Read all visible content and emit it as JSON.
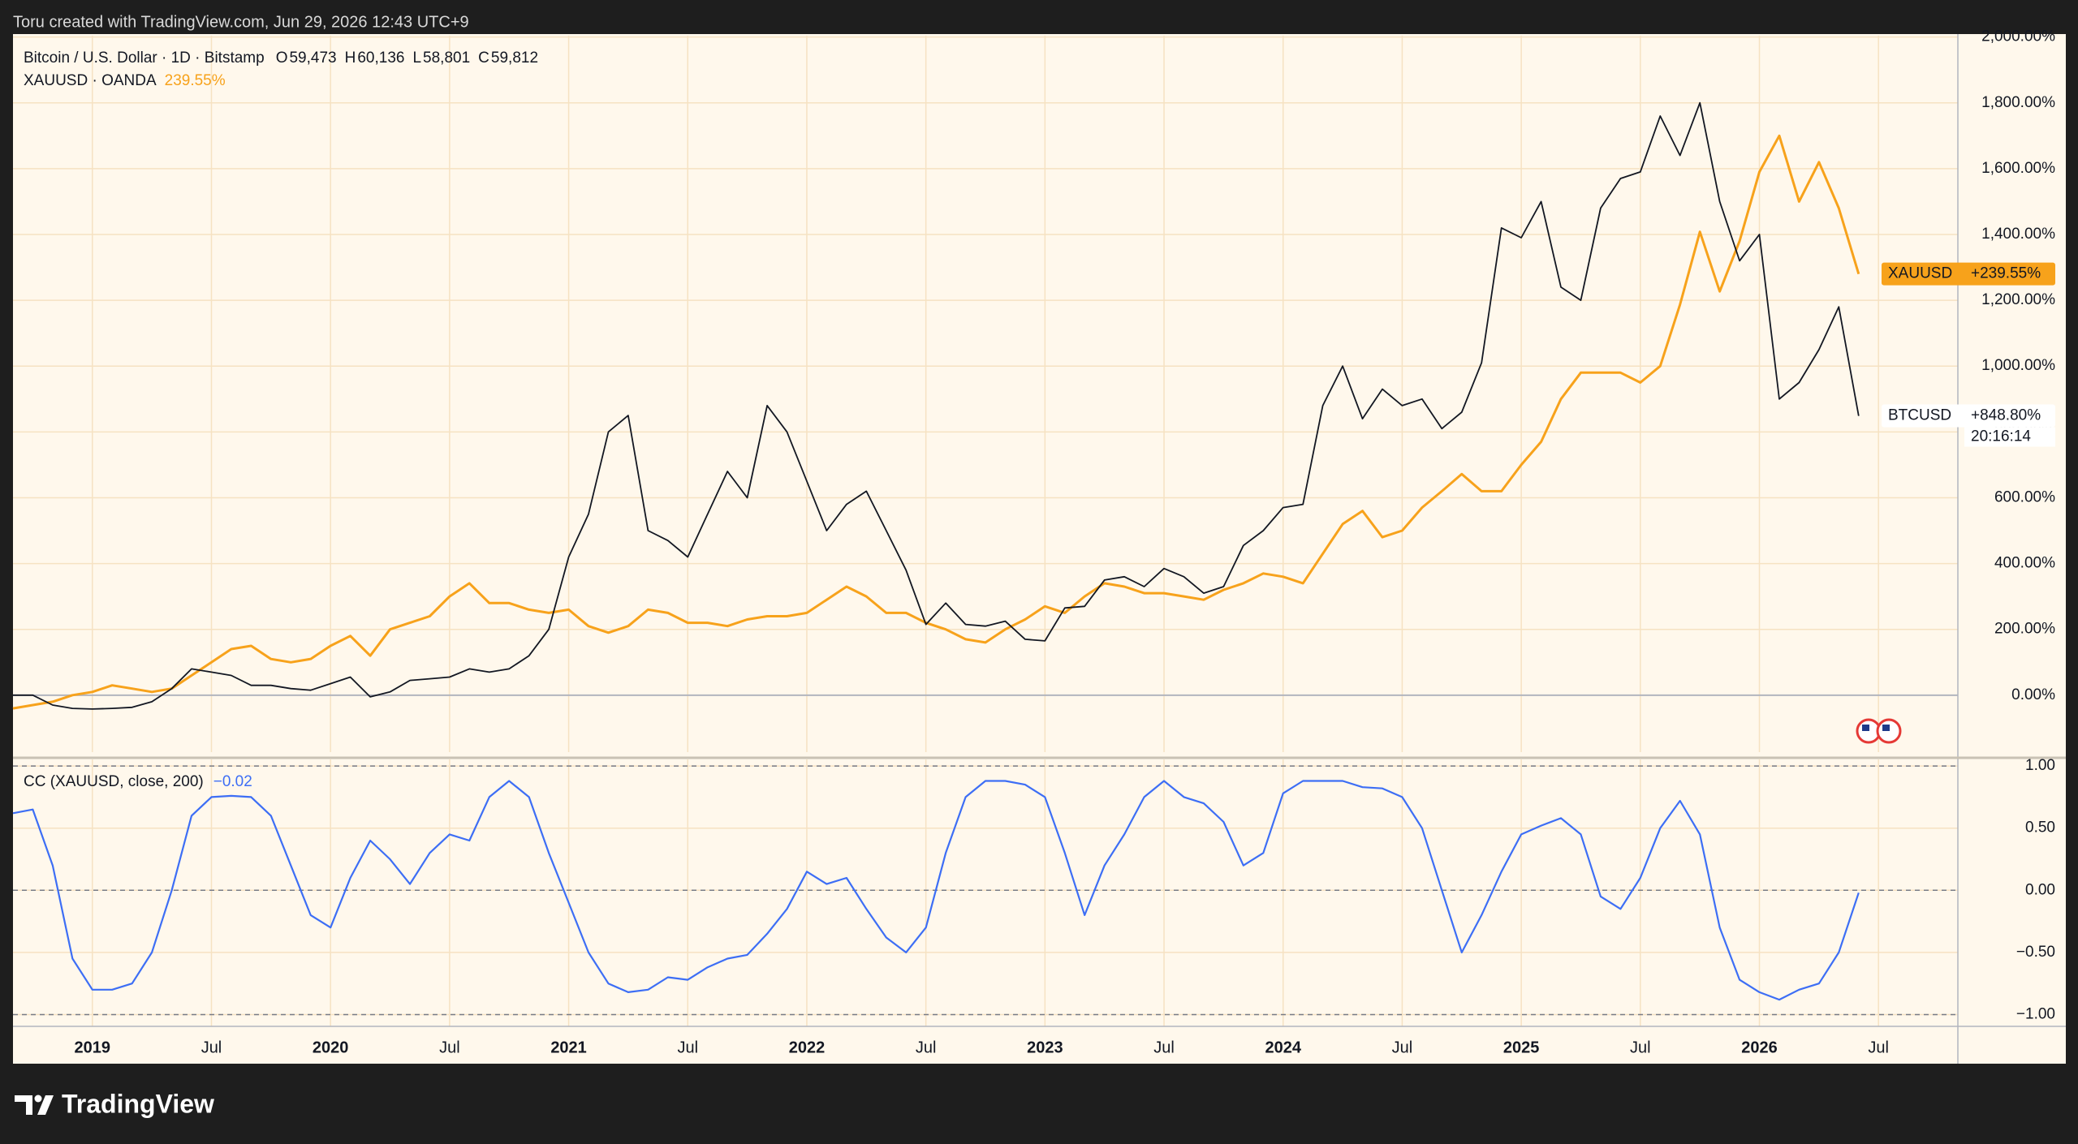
{
  "header": {
    "attribution": "Toru created with TradingView.com, Jun 29, 2026 12:43 UTC+9"
  },
  "footer": {
    "brand": "TradingView"
  },
  "chart_data": [
    {
      "type": "line",
      "title": "Bitcoin / U.S. Dollar · 1D · Bitstamp",
      "ohlc": [
        {
          "key": "O",
          "value": "59,473"
        },
        {
          "key": "H",
          "value": "60,136"
        },
        {
          "key": "L",
          "value": "58,801"
        },
        {
          "key": "C",
          "value": "59,812"
        }
      ],
      "x": [
        "2018-09",
        "2018-10",
        "2018-11",
        "2018-12",
        "2019-01",
        "2019-02",
        "2019-03",
        "2019-04",
        "2019-05",
        "2019-06",
        "2019-07",
        "2019-08",
        "2019-09",
        "2019-10",
        "2019-11",
        "2019-12",
        "2020-01",
        "2020-02",
        "2020-03",
        "2020-04",
        "2020-05",
        "2020-06",
        "2020-07",
        "2020-08",
        "2020-09",
        "2020-10",
        "2020-11",
        "2020-12",
        "2021-01",
        "2021-02",
        "2021-03",
        "2021-04",
        "2021-05",
        "2021-06",
        "2021-07",
        "2021-08",
        "2021-09",
        "2021-10",
        "2021-11",
        "2021-12",
        "2022-01",
        "2022-02",
        "2022-03",
        "2022-04",
        "2022-05",
        "2022-06",
        "2022-07",
        "2022-08",
        "2022-09",
        "2022-10",
        "2022-11",
        "2022-12",
        "2023-01",
        "2023-02",
        "2023-03",
        "2023-04",
        "2023-05",
        "2023-06",
        "2023-07",
        "2023-08",
        "2023-09",
        "2023-10",
        "2023-11",
        "2023-12",
        "2024-01",
        "2024-02",
        "2024-03",
        "2024-04",
        "2024-05",
        "2024-06",
        "2024-07",
        "2024-08",
        "2024-09",
        "2024-10",
        "2024-11",
        "2024-12",
        "2025-01",
        "2025-02",
        "2025-03",
        "2025-04",
        "2025-05",
        "2025-06",
        "2025-07",
        "2025-08",
        "2025-09",
        "2025-10",
        "2025-11",
        "2025-12",
        "2026-01",
        "2026-02",
        "2026-03",
        "2026-04",
        "2026-05",
        "2026-06"
      ],
      "series": [
        {
          "name": "BTCUSD",
          "color": "#131722",
          "price_label": "+848.80%",
          "countdown": "20:16:14",
          "values": [
            0,
            0,
            -30,
            -40,
            -42,
            -40,
            -37,
            -20,
            20,
            80,
            70,
            60,
            30,
            30,
            20,
            15,
            35,
            55,
            -5,
            10,
            45,
            50,
            55,
            80,
            70,
            80,
            120,
            200,
            420,
            550,
            800,
            850,
            500,
            470,
            420,
            550,
            680,
            600,
            880,
            800,
            650,
            500,
            580,
            620,
            500,
            380,
            215,
            280,
            215,
            210,
            225,
            170,
            165,
            265,
            270,
            350,
            360,
            330,
            385,
            360,
            310,
            330,
            455,
            500,
            570,
            580,
            880,
            1000,
            840,
            930,
            880,
            900,
            810,
            860,
            1010,
            1420,
            1390,
            1500,
            1240,
            1200,
            1480,
            1570,
            1590,
            1760,
            1640,
            1800,
            1500,
            1320,
            1400,
            900,
            950,
            1050,
            1180,
            848.8
          ]
        },
        {
          "name": "XAUUSD",
          "legend_text": "XAUUSD · OANDA",
          "legend_value": "239.55%",
          "color": "#f7a21b",
          "price_label": "+239.55%",
          "values": [
            -40,
            -30,
            -20,
            0,
            10,
            30,
            20,
            10,
            20,
            60,
            100,
            140,
            150,
            110,
            100,
            110,
            150,
            180,
            120,
            200,
            220,
            240,
            300,
            340,
            280,
            280,
            260,
            250,
            260,
            210,
            190,
            210,
            260,
            250,
            220,
            220,
            210,
            230,
            240,
            240,
            250,
            290,
            330,
            300,
            250,
            250,
            220,
            200,
            170,
            160,
            200,
            230,
            270,
            250,
            300,
            340,
            330,
            310,
            310,
            300,
            290,
            320,
            340,
            370,
            360,
            340,
            430,
            520,
            560,
            480,
            500,
            570,
            620,
            672,
            620,
            620,
            700,
            770,
            900,
            980,
            980,
            980,
            950,
            1000,
            1187,
            1408,
            1227,
            1380,
            1590,
            1700,
            1500,
            1620,
            1480,
            1280
          ]
        }
      ],
      "xlim": [
        "2018-09",
        "2026-11"
      ],
      "xticks": [
        {
          "value": "2019-01",
          "label": "2019"
        },
        {
          "value": "2019-07",
          "label": "Jul"
        },
        {
          "value": "2020-01",
          "label": "2020"
        },
        {
          "value": "2020-07",
          "label": "Jul"
        },
        {
          "value": "2021-01",
          "label": "2021"
        },
        {
          "value": "2021-07",
          "label": "Jul"
        },
        {
          "value": "2022-01",
          "label": "2022"
        },
        {
          "value": "2022-07",
          "label": "Jul"
        },
        {
          "value": "2023-01",
          "label": "2023"
        },
        {
          "value": "2023-07",
          "label": "Jul"
        },
        {
          "value": "2024-01",
          "label": "2024"
        },
        {
          "value": "2024-07",
          "label": "Jul"
        },
        {
          "value": "2025-01",
          "label": "2025"
        },
        {
          "value": "2025-07",
          "label": "Jul"
        },
        {
          "value": "2026-01",
          "label": "2026"
        },
        {
          "value": "2026-07",
          "label": "Jul"
        }
      ],
      "ylim": [
        -173,
        2004
      ],
      "yticks": [
        {
          "value": 0,
          "label": "0.00%"
        },
        {
          "value": 200,
          "label": "200.00%"
        },
        {
          "value": 400,
          "label": "400.00%"
        },
        {
          "value": 600,
          "label": "600.00%"
        },
        {
          "value": 800,
          "label": "800.00%"
        },
        {
          "value": 1000,
          "label": "1,000.00%"
        },
        {
          "value": 1200,
          "label": "1,200.00%"
        },
        {
          "value": 1400,
          "label": "1,400.00%"
        },
        {
          "value": 1600,
          "label": "1,600.00%"
        },
        {
          "value": 1800,
          "label": "1,800.00%"
        },
        {
          "value": 2000,
          "label": "2,000.00%"
        }
      ],
      "grid": true
    },
    {
      "type": "line",
      "title": "CC (XAUUSD, close, 200)",
      "value_text": "−0.02",
      "color": "#3d6ef5",
      "x": [
        "2018-09",
        "2018-10",
        "2018-11",
        "2018-12",
        "2019-01",
        "2019-02",
        "2019-03",
        "2019-04",
        "2019-05",
        "2019-06",
        "2019-07",
        "2019-08",
        "2019-09",
        "2019-10",
        "2019-11",
        "2019-12",
        "2020-01",
        "2020-02",
        "2020-03",
        "2020-04",
        "2020-05",
        "2020-06",
        "2020-07",
        "2020-08",
        "2020-09",
        "2020-10",
        "2020-11",
        "2020-12",
        "2021-01",
        "2021-02",
        "2021-03",
        "2021-04",
        "2021-05",
        "2021-06",
        "2021-07",
        "2021-08",
        "2021-09",
        "2021-10",
        "2021-11",
        "2021-12",
        "2022-01",
        "2022-02",
        "2022-03",
        "2022-04",
        "2022-05",
        "2022-06",
        "2022-07",
        "2022-08",
        "2022-09",
        "2022-10",
        "2022-11",
        "2022-12",
        "2023-01",
        "2023-02",
        "2023-03",
        "2023-04",
        "2023-05",
        "2023-06",
        "2023-07",
        "2023-08",
        "2023-09",
        "2023-10",
        "2023-11",
        "2023-12",
        "2024-01",
        "2024-02",
        "2024-03",
        "2024-04",
        "2024-05",
        "2024-06",
        "2024-07",
        "2024-08",
        "2024-09",
        "2024-10",
        "2024-11",
        "2024-12",
        "2025-01",
        "2025-02",
        "2025-03",
        "2025-04",
        "2025-05",
        "2025-06",
        "2025-07",
        "2025-08",
        "2025-09",
        "2025-10",
        "2025-11",
        "2025-12",
        "2026-01",
        "2026-02",
        "2026-03",
        "2026-04",
        "2026-05",
        "2026-06"
      ],
      "values": [
        0.62,
        0.65,
        0.2,
        -0.55,
        -0.8,
        -0.8,
        -0.75,
        -0.5,
        0.0,
        0.6,
        0.75,
        0.76,
        0.75,
        0.6,
        0.2,
        -0.2,
        -0.3,
        0.1,
        0.4,
        0.25,
        0.05,
        0.3,
        0.45,
        0.4,
        0.75,
        0.88,
        0.75,
        0.3,
        -0.1,
        -0.5,
        -0.75,
        -0.82,
        -0.8,
        -0.7,
        -0.72,
        -0.62,
        -0.55,
        -0.52,
        -0.35,
        -0.15,
        0.15,
        0.05,
        0.1,
        -0.15,
        -0.38,
        -0.5,
        -0.3,
        0.3,
        0.75,
        0.88,
        0.88,
        0.85,
        0.75,
        0.3,
        -0.2,
        0.2,
        0.45,
        0.75,
        0.88,
        0.75,
        0.7,
        0.55,
        0.2,
        0.3,
        0.78,
        0.88,
        0.88,
        0.88,
        0.83,
        0.82,
        0.75,
        0.5,
        0.0,
        -0.5,
        -0.2,
        0.15,
        0.45,
        0.52,
        0.58,
        0.45,
        -0.05,
        -0.15,
        0.1,
        0.5,
        0.72,
        0.45,
        -0.3,
        -0.72,
        -0.82,
        -0.88,
        -0.8,
        -0.75,
        -0.5,
        -0.02
      ],
      "xlim": [
        "2018-09",
        "2026-11"
      ],
      "xticks": [
        {
          "value": "2019-01",
          "label": "2019"
        },
        {
          "value": "2019-07",
          "label": "Jul"
        },
        {
          "value": "2020-01",
          "label": "2020"
        },
        {
          "value": "2020-07",
          "label": "Jul"
        },
        {
          "value": "2021-01",
          "label": "2021"
        },
        {
          "value": "2021-07",
          "label": "Jul"
        },
        {
          "value": "2022-01",
          "label": "2022"
        },
        {
          "value": "2022-07",
          "label": "Jul"
        },
        {
          "value": "2023-01",
          "label": "2023"
        },
        {
          "value": "2023-07",
          "label": "Jul"
        },
        {
          "value": "2024-01",
          "label": "2024"
        },
        {
          "value": "2024-07",
          "label": "Jul"
        },
        {
          "value": "2025-01",
          "label": "2025"
        },
        {
          "value": "2025-07",
          "label": "Jul"
        },
        {
          "value": "2026-01",
          "label": "2026"
        },
        {
          "value": "2026-07",
          "label": "Jul"
        }
      ],
      "ylim": [
        -1.095,
        1.053
      ],
      "yticks": [
        {
          "value": 1,
          "label": "1.00"
        },
        {
          "value": 0.5,
          "label": "0.50"
        },
        {
          "value": 0,
          "label": "0.00"
        },
        {
          "value": -0.5,
          "label": "−0.50"
        },
        {
          "value": -1,
          "label": "−1.00"
        }
      ],
      "hlines": [
        1,
        0,
        -1
      ],
      "grid": true
    }
  ]
}
